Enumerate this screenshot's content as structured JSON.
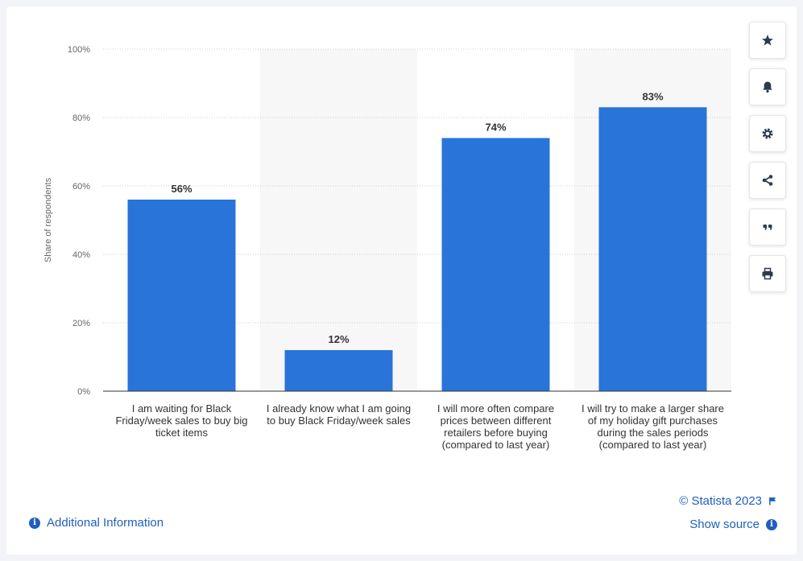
{
  "chart_data": {
    "type": "bar",
    "categories": [
      "I am waiting for Black Friday/week sales to buy big ticket items",
      "I already know what I am going to buy Black Friday/week sales",
      "I will more often compare prices between different retailers before buying (compared to last year)",
      "I will try to make a larger share of my holiday gift purchases during the sales periods (compared to last year)"
    ],
    "values": [
      56,
      12,
      74,
      83
    ],
    "value_labels": [
      "56%",
      "12%",
      "74%",
      "83%"
    ],
    "ylabel": "Share of respondents",
    "ylim": [
      0,
      100
    ],
    "yticks": [
      0,
      20,
      40,
      60,
      80,
      100
    ],
    "ytick_labels": [
      "0%",
      "20%",
      "40%",
      "60%",
      "80%",
      "100%"
    ],
    "grid": true,
    "bar_color": "#2874d9",
    "alt_band_color": "#f7f7f7"
  },
  "footer": {
    "additional_info": "Additional Information",
    "copyright": "© Statista 2023",
    "show_source": "Show source"
  },
  "toolbar": {
    "icons": [
      "star-icon",
      "bell-icon",
      "gear-icon",
      "share-icon",
      "quote-icon",
      "print-icon"
    ]
  },
  "colors": {
    "accent": "#1f5fbf"
  }
}
